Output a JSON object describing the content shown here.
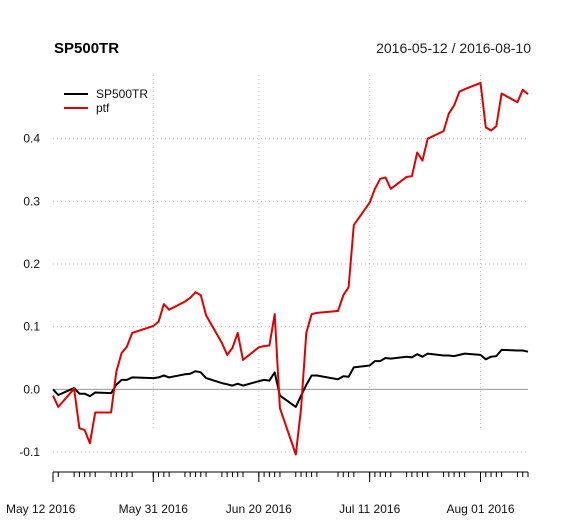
{
  "chart_data": {
    "type": "line",
    "title": "SP500TR",
    "date_range": "2016-05-12 / 2016-08-10",
    "ylim": [
      -0.1,
      0.5
    ],
    "y_ticks": [
      -0.1,
      0.0,
      0.1,
      0.2,
      0.3,
      0.4
    ],
    "y_tick_labels": [
      "-0.1",
      "0.0",
      "0.1",
      "0.2",
      "0.3",
      "0.4"
    ],
    "x_tick_labels": [
      "May 12 2016",
      "May 31 2016",
      "Jun 20 2016",
      "Jul 11 2016",
      "Aug 01 2016"
    ],
    "x_tick_dates": [
      "2016-05-12",
      "2016-05-31",
      "2016-06-20",
      "2016-07-11",
      "2016-08-01"
    ],
    "x_gridline_dates": [
      "2016-05-31",
      "2016-06-20",
      "2016-07-11",
      "2016-08-01"
    ],
    "x_range": [
      "2016-05-12",
      "2016-08-10"
    ],
    "grid": true,
    "legend_position": "top-left",
    "colors": {
      "SP500TR": "#000000",
      "ptf": "#e00000",
      "zero_line": "#999999",
      "grid": "#bbbbbb"
    },
    "series": [
      {
        "name": "SP500TR",
        "points": [
          [
            "2016-05-12",
            0.0
          ],
          [
            "2016-05-13",
            -0.009
          ],
          [
            "2016-05-16",
            0.002
          ],
          [
            "2016-05-17",
            -0.007
          ],
          [
            "2016-05-18",
            -0.007
          ],
          [
            "2016-05-19",
            -0.011
          ],
          [
            "2016-05-20",
            -0.005
          ],
          [
            "2016-05-23",
            -0.006
          ],
          [
            "2016-05-24",
            0.007
          ],
          [
            "2016-05-25",
            0.015
          ],
          [
            "2016-05-26",
            0.015
          ],
          [
            "2016-05-27",
            0.019
          ],
          [
            "2016-05-31",
            0.018
          ],
          [
            "2016-06-01",
            0.019
          ],
          [
            "2016-06-02",
            0.022
          ],
          [
            "2016-06-03",
            0.019
          ],
          [
            "2016-06-06",
            0.024
          ],
          [
            "2016-06-07",
            0.025
          ],
          [
            "2016-06-08",
            0.029
          ],
          [
            "2016-06-09",
            0.027
          ],
          [
            "2016-06-10",
            0.018
          ],
          [
            "2016-06-13",
            0.01
          ],
          [
            "2016-06-14",
            0.008
          ],
          [
            "2016-06-15",
            0.006
          ],
          [
            "2016-06-16",
            0.009
          ],
          [
            "2016-06-17",
            0.006
          ],
          [
            "2016-06-20",
            0.013
          ],
          [
            "2016-06-21",
            0.015
          ],
          [
            "2016-06-22",
            0.014
          ],
          [
            "2016-06-23",
            0.027
          ],
          [
            "2016-06-24",
            -0.01
          ],
          [
            "2016-06-27",
            -0.028
          ],
          [
            "2016-06-28",
            -0.01
          ],
          [
            "2016-06-29",
            0.007
          ],
          [
            "2016-06-30",
            0.022
          ],
          [
            "2016-07-01",
            0.022
          ],
          [
            "2016-07-05",
            0.016
          ],
          [
            "2016-07-06",
            0.021
          ],
          [
            "2016-07-07",
            0.02
          ],
          [
            "2016-07-08",
            0.035
          ],
          [
            "2016-07-11",
            0.038
          ],
          [
            "2016-07-12",
            0.045
          ],
          [
            "2016-07-13",
            0.045
          ],
          [
            "2016-07-14",
            0.05
          ],
          [
            "2016-07-15",
            0.049
          ],
          [
            "2016-07-18",
            0.052
          ],
          [
            "2016-07-19",
            0.051
          ],
          [
            "2016-07-20",
            0.056
          ],
          [
            "2016-07-21",
            0.052
          ],
          [
            "2016-07-22",
            0.057
          ],
          [
            "2016-07-25",
            0.054
          ],
          [
            "2016-07-26",
            0.054
          ],
          [
            "2016-07-27",
            0.053
          ],
          [
            "2016-07-28",
            0.055
          ],
          [
            "2016-07-29",
            0.057
          ],
          [
            "2016-08-01",
            0.055
          ],
          [
            "2016-08-02",
            0.048
          ],
          [
            "2016-08-03",
            0.052
          ],
          [
            "2016-08-04",
            0.053
          ],
          [
            "2016-08-05",
            0.063
          ],
          [
            "2016-08-08",
            0.062
          ],
          [
            "2016-08-09",
            0.062
          ],
          [
            "2016-08-10",
            0.06
          ]
        ]
      },
      {
        "name": "ptf",
        "points": [
          [
            "2016-05-12",
            -0.01
          ],
          [
            "2016-05-13",
            -0.028
          ],
          [
            "2016-05-16",
            0.001
          ],
          [
            "2016-05-17",
            -0.062
          ],
          [
            "2016-05-18",
            -0.065
          ],
          [
            "2016-05-19",
            -0.086
          ],
          [
            "2016-05-20",
            -0.037
          ],
          [
            "2016-05-23",
            -0.037
          ],
          [
            "2016-05-24",
            0.028
          ],
          [
            "2016-05-25",
            0.058
          ],
          [
            "2016-05-26",
            0.068
          ],
          [
            "2016-05-27",
            0.09
          ],
          [
            "2016-05-31",
            0.101
          ],
          [
            "2016-06-01",
            0.108
          ],
          [
            "2016-06-02",
            0.136
          ],
          [
            "2016-06-03",
            0.127
          ],
          [
            "2016-06-06",
            0.14
          ],
          [
            "2016-06-07",
            0.146
          ],
          [
            "2016-06-08",
            0.155
          ],
          [
            "2016-06-09",
            0.15
          ],
          [
            "2016-06-10",
            0.118
          ],
          [
            "2016-06-13",
            0.074
          ],
          [
            "2016-06-14",
            0.055
          ],
          [
            "2016-06-15",
            0.066
          ],
          [
            "2016-06-16",
            0.09
          ],
          [
            "2016-06-17",
            0.047
          ],
          [
            "2016-06-20",
            0.067
          ],
          [
            "2016-06-21",
            0.069
          ],
          [
            "2016-06-22",
            0.07
          ],
          [
            "2016-06-23",
            0.12
          ],
          [
            "2016-06-24",
            -0.03
          ],
          [
            "2016-06-27",
            -0.104
          ],
          [
            "2016-06-28",
            -0.03
          ],
          [
            "2016-06-29",
            0.09
          ],
          [
            "2016-06-30",
            0.12
          ],
          [
            "2016-07-01",
            0.122
          ],
          [
            "2016-07-05",
            0.125
          ],
          [
            "2016-07-06",
            0.15
          ],
          [
            "2016-07-07",
            0.163
          ],
          [
            "2016-07-08",
            0.262
          ],
          [
            "2016-07-11",
            0.298
          ],
          [
            "2016-07-12",
            0.32
          ],
          [
            "2016-07-13",
            0.336
          ],
          [
            "2016-07-14",
            0.338
          ],
          [
            "2016-07-15",
            0.32
          ],
          [
            "2016-07-18",
            0.339
          ],
          [
            "2016-07-19",
            0.34
          ],
          [
            "2016-07-20",
            0.378
          ],
          [
            "2016-07-21",
            0.365
          ],
          [
            "2016-07-22",
            0.4
          ],
          [
            "2016-07-25",
            0.412
          ],
          [
            "2016-07-26",
            0.44
          ],
          [
            "2016-07-27",
            0.453
          ],
          [
            "2016-07-28",
            0.475
          ],
          [
            "2016-07-29",
            0.479
          ],
          [
            "2016-08-01",
            0.489
          ],
          [
            "2016-08-02",
            0.418
          ],
          [
            "2016-08-03",
            0.413
          ],
          [
            "2016-08-04",
            0.42
          ],
          [
            "2016-08-05",
            0.472
          ],
          [
            "2016-08-08",
            0.458
          ],
          [
            "2016-08-09",
            0.478
          ],
          [
            "2016-08-10",
            0.471
          ]
        ]
      }
    ]
  }
}
